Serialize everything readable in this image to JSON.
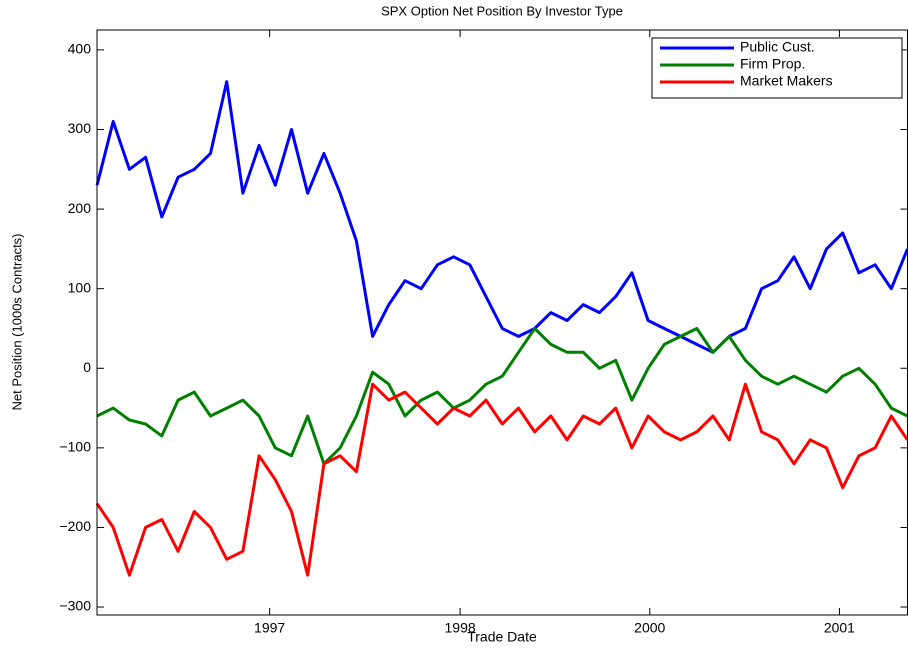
{
  "chart_data": {
    "type": "line",
    "title": "SPX Option Net Position By Investor Type",
    "x_label": "Trade Date",
    "y_label": "Net Position (1000s Contracts)",
    "x": [
      0,
      2,
      4,
      6,
      8,
      10,
      12,
      14,
      16,
      18,
      20,
      22,
      24,
      26,
      28,
      30,
      32,
      34,
      36,
      38,
      40,
      42,
      44,
      46,
      48,
      50,
      52,
      54,
      56,
      58,
      60,
      62,
      64,
      66,
      68,
      70,
      72,
      74,
      76,
      78,
      80,
      82,
      84,
      86,
      88,
      90,
      92,
      94,
      96,
      98,
      100
    ],
    "series": [
      {
        "name": "Public Cust.",
        "color": "#0000ff",
        "values": [
          230,
          310,
          250,
          265,
          190,
          240,
          250,
          270,
          360,
          220,
          280,
          230,
          300,
          220,
          270,
          220,
          160,
          40,
          80,
          110,
          100,
          130,
          140,
          130,
          90,
          50,
          40,
          50,
          70,
          60,
          80,
          70,
          90,
          120,
          60,
          50,
          40,
          30,
          20,
          40,
          50,
          100,
          110,
          140,
          100,
          150,
          170,
          120,
          130,
          100,
          150
        ]
      },
      {
        "name": "Firm Prop.",
        "color": "#008000",
        "values": [
          -60,
          -50,
          -65,
          -70,
          -85,
          -40,
          -30,
          -60,
          -50,
          -40,
          -60,
          -100,
          -110,
          -60,
          -120,
          -100,
          -60,
          -5,
          -20,
          -60,
          -40,
          -30,
          -50,
          -40,
          -20,
          -10,
          20,
          50,
          30,
          20,
          20,
          0,
          10,
          -40,
          0,
          30,
          40,
          50,
          20,
          40,
          10,
          -10,
          -20,
          -10,
          -20,
          -30,
          -10,
          0,
          -20,
          -50,
          -60
        ]
      },
      {
        "name": "Market Makers",
        "color": "#ff0000",
        "values": [
          -170,
          -200,
          -260,
          -200,
          -190,
          -230,
          -180,
          -200,
          -240,
          -230,
          -110,
          -140,
          -180,
          -260,
          -120,
          -110,
          -130,
          -20,
          -40,
          -30,
          -50,
          -70,
          -50,
          -60,
          -40,
          -70,
          -50,
          -80,
          -60,
          -90,
          -60,
          -70,
          -50,
          -100,
          -60,
          -80,
          -90,
          -80,
          -60,
          -90,
          -20,
          -80,
          -90,
          -120,
          -90,
          -100,
          -150,
          -110,
          -100,
          -60,
          -90
        ]
      }
    ],
    "xlim": [
      0,
      100
    ],
    "xticks": [
      {
        "value": 21.3,
        "label": "1997"
      },
      {
        "value": 44.8,
        "label": "1998"
      },
      {
        "value": 68.2,
        "label": "2000"
      },
      {
        "value": 91.6,
        "label": "2001"
      }
    ],
    "ylim": [
      -310,
      425
    ],
    "yticks": [
      {
        "value": -300,
        "label": "−300"
      },
      {
        "value": -200,
        "label": "−200"
      },
      {
        "value": -100,
        "label": "−100"
      },
      0,
      100,
      200,
      300,
      400
    ],
    "grid": false,
    "legend": "upper right"
  }
}
